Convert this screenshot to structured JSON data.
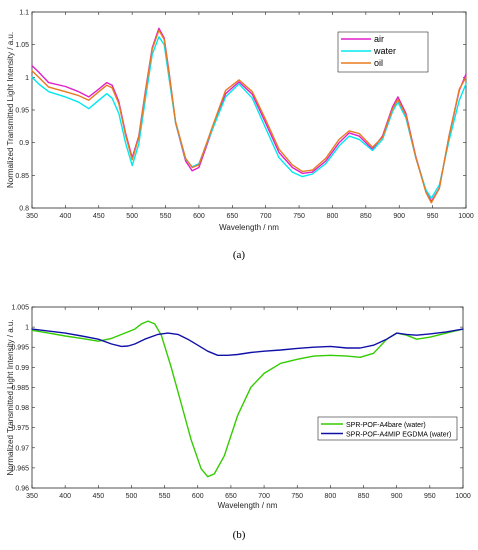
{
  "chart_data": [
    {
      "type": "line",
      "caption": "(a)",
      "xlabel": "Wavelength / nm",
      "ylabel": "Normalized Transmitted Light Intensity / a.u.",
      "xlim": [
        350,
        1000
      ],
      "ylim": [
        0.8,
        1.1
      ],
      "xticks": [
        350,
        400,
        450,
        500,
        550,
        600,
        650,
        700,
        750,
        800,
        850,
        900,
        950,
        1000
      ],
      "yticks": [
        0.8,
        0.85,
        0.9,
        0.95,
        1,
        1.05,
        1.1
      ],
      "ytick_labels": [
        "0.8",
        "0.85",
        "0.9",
        "0.95",
        "1",
        "1.05",
        "1.1"
      ],
      "grid": false,
      "legend_position": "top-right",
      "series": [
        {
          "name": "air",
          "color": "#e020c8",
          "x": [
            350,
            360,
            375,
            400,
            420,
            435,
            450,
            462,
            470,
            480,
            490,
            500,
            510,
            520,
            530,
            540,
            548,
            555,
            565,
            580,
            590,
            600,
            620,
            640,
            660,
            680,
            700,
            720,
            740,
            755,
            770,
            790,
            810,
            825,
            840,
            860,
            875,
            890,
            898,
            910,
            925,
            940,
            948,
            960,
            975,
            990,
            1000
          ],
          "y": [
            1.018,
            1.008,
            0.992,
            0.986,
            0.978,
            0.97,
            0.982,
            0.992,
            0.988,
            0.963,
            0.915,
            0.877,
            0.91,
            0.98,
            1.045,
            1.075,
            1.06,
            1.01,
            0.93,
            0.872,
            0.857,
            0.862,
            0.92,
            0.975,
            0.993,
            0.974,
            0.93,
            0.885,
            0.862,
            0.853,
            0.855,
            0.872,
            0.9,
            0.915,
            0.91,
            0.89,
            0.91,
            0.955,
            0.97,
            0.945,
            0.878,
            0.826,
            0.81,
            0.83,
            0.912,
            0.98,
            1.005
          ]
        },
        {
          "name": "water",
          "color": "#00e8f0",
          "x": [
            350,
            360,
            375,
            400,
            420,
            435,
            450,
            462,
            470,
            480,
            490,
            500,
            510,
            520,
            530,
            540,
            548,
            555,
            565,
            580,
            590,
            600,
            620,
            640,
            660,
            680,
            700,
            720,
            740,
            755,
            770,
            790,
            810,
            825,
            840,
            860,
            875,
            890,
            898,
            910,
            925,
            940,
            948,
            960,
            975,
            990,
            1000
          ],
          "y": [
            1.0,
            0.99,
            0.978,
            0.97,
            0.962,
            0.952,
            0.965,
            0.975,
            0.968,
            0.945,
            0.9,
            0.865,
            0.898,
            0.968,
            1.035,
            1.062,
            1.05,
            1.0,
            0.93,
            0.875,
            0.863,
            0.868,
            0.92,
            0.97,
            0.99,
            0.968,
            0.922,
            0.877,
            0.855,
            0.848,
            0.852,
            0.868,
            0.895,
            0.91,
            0.905,
            0.888,
            0.905,
            0.948,
            0.962,
            0.938,
            0.876,
            0.828,
            0.815,
            0.835,
            0.905,
            0.965,
            0.99
          ]
        },
        {
          "name": "oil",
          "color": "#e87a20",
          "x": [
            350,
            360,
            375,
            400,
            420,
            435,
            450,
            462,
            470,
            480,
            490,
            500,
            510,
            520,
            530,
            540,
            548,
            555,
            565,
            580,
            590,
            600,
            620,
            640,
            660,
            680,
            700,
            720,
            740,
            755,
            770,
            790,
            810,
            825,
            840,
            860,
            875,
            890,
            898,
            910,
            925,
            940,
            948,
            960,
            975,
            990,
            1000
          ],
          "y": [
            1.01,
            1.0,
            0.985,
            0.978,
            0.972,
            0.965,
            0.978,
            0.988,
            0.984,
            0.96,
            0.912,
            0.874,
            0.908,
            0.978,
            1.043,
            1.072,
            1.058,
            1.008,
            0.932,
            0.876,
            0.862,
            0.866,
            0.924,
            0.98,
            0.996,
            0.978,
            0.935,
            0.89,
            0.866,
            0.856,
            0.858,
            0.876,
            0.905,
            0.918,
            0.914,
            0.893,
            0.908,
            0.952,
            0.966,
            0.942,
            0.877,
            0.824,
            0.808,
            0.83,
            0.912,
            0.982,
            1.0
          ]
        }
      ]
    },
    {
      "type": "line",
      "caption": "(b)",
      "xlabel": "Wavelength / nm",
      "ylabel": "Normalized Transmitted Light Intensity / a.u.",
      "xlim": [
        350,
        1000
      ],
      "ylim": [
        0.96,
        1.005
      ],
      "xticks": [
        350,
        400,
        450,
        500,
        550,
        600,
        650,
        700,
        750,
        800,
        850,
        900,
        950,
        1000
      ],
      "yticks": [
        0.96,
        0.965,
        0.97,
        0.975,
        0.98,
        0.985,
        0.99,
        0.995,
        1,
        1.005
      ],
      "ytick_labels": [
        "0.96",
        "0.965",
        "0.97",
        "0.975",
        "0.98",
        "0.985",
        "0.99",
        "0.995",
        "1",
        "1.005"
      ],
      "grid": false,
      "legend_position": "bottom-right",
      "series": [
        {
          "name": "SPR-POF-A4bare (water)",
          "color": "#33cc00",
          "x": [
            350,
            375,
            400,
            425,
            450,
            470,
            490,
            505,
            515,
            525,
            535,
            545,
            560,
            575,
            590,
            605,
            615,
            625,
            640,
            660,
            680,
            700,
            725,
            750,
            775,
            800,
            825,
            845,
            865,
            885,
            900,
            915,
            930,
            950,
            975,
            1000
          ],
          "y": [
            0.9992,
            0.9985,
            0.9978,
            0.9972,
            0.9965,
            0.9972,
            0.9985,
            0.9995,
            1.0008,
            1.0015,
            1.0008,
            0.998,
            0.99,
            0.981,
            0.972,
            0.9648,
            0.9628,
            0.9635,
            0.968,
            0.978,
            0.985,
            0.9885,
            0.991,
            0.992,
            0.9928,
            0.993,
            0.9928,
            0.9925,
            0.9935,
            0.997,
            0.9985,
            0.998,
            0.997,
            0.9975,
            0.9985,
            0.9995
          ]
        },
        {
          "name": "SPR-POF-A4MIP EGDMA (water)",
          "color": "#1010a8",
          "x": [
            350,
            375,
            400,
            425,
            450,
            470,
            485,
            495,
            505,
            520,
            540,
            555,
            570,
            585,
            600,
            615,
            630,
            645,
            660,
            680,
            700,
            725,
            750,
            775,
            800,
            825,
            845,
            865,
            885,
            900,
            915,
            930,
            950,
            975,
            1000
          ],
          "y": [
            0.9995,
            0.999,
            0.9985,
            0.9978,
            0.997,
            0.9958,
            0.9952,
            0.9953,
            0.9958,
            0.997,
            0.9982,
            0.9985,
            0.9982,
            0.997,
            0.9955,
            0.994,
            0.993,
            0.993,
            0.9932,
            0.9937,
            0.994,
            0.9943,
            0.9947,
            0.995,
            0.9952,
            0.9948,
            0.9948,
            0.9955,
            0.997,
            0.9985,
            0.9982,
            0.998,
            0.9983,
            0.9988,
            0.9995
          ]
        }
      ]
    }
  ]
}
